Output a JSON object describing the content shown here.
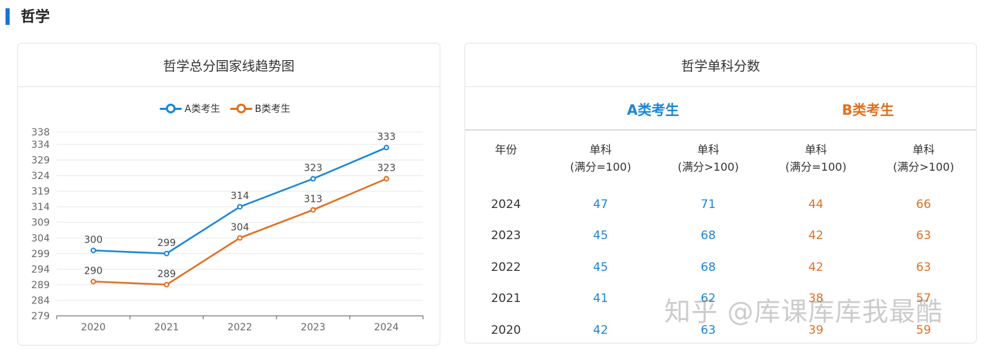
{
  "section": {
    "title": "哲学"
  },
  "left_card": {
    "title": "哲学总分国家线趋势图"
  },
  "chart_data": {
    "type": "line",
    "title": "哲学总分国家线趋势图",
    "categories": [
      "2020",
      "2021",
      "2022",
      "2023",
      "2024"
    ],
    "y_ticks": [
      338,
      334,
      329,
      324,
      319,
      314,
      309,
      304,
      299,
      294,
      289,
      284,
      279
    ],
    "ylim": [
      279,
      338
    ],
    "legend_position": "top-center",
    "grid": true,
    "series": [
      {
        "name": "A类考生",
        "color": "#1a86d6",
        "values": [
          300,
          299,
          314,
          323,
          333
        ]
      },
      {
        "name": "B类考生",
        "color": "#e07020",
        "values": [
          290,
          289,
          304,
          313,
          323
        ]
      }
    ]
  },
  "right_card": {
    "title": "哲学单科分数",
    "group_a": "A类考生",
    "group_b": "B类考生",
    "columns": {
      "year": "年份",
      "a1_line1": "单科",
      "a1_line2": "(满分=100)",
      "a2_line1": "单科",
      "a2_line2": "(满分>100)",
      "b1_line1": "单科",
      "b1_line2": "(满分=100)",
      "b2_line1": "单科",
      "b2_line2": "(满分>100)"
    },
    "rows": [
      {
        "year": "2024",
        "a1": "47",
        "a2": "71",
        "b1": "44",
        "b2": "66"
      },
      {
        "year": "2023",
        "a1": "45",
        "a2": "68",
        "b1": "42",
        "b2": "63"
      },
      {
        "year": "2022",
        "a1": "45",
        "a2": "68",
        "b1": "42",
        "b2": "63"
      },
      {
        "year": "2021",
        "a1": "41",
        "a2": "62",
        "b1": "38",
        "b2": "57"
      },
      {
        "year": "2020",
        "a1": "42",
        "a2": "63",
        "b1": "39",
        "b2": "59"
      }
    ]
  },
  "watermark": "知乎 @库课库库我最酷",
  "colors": {
    "accent": "#1a73d9",
    "series_a": "#1a86d6",
    "series_b": "#e07020"
  }
}
